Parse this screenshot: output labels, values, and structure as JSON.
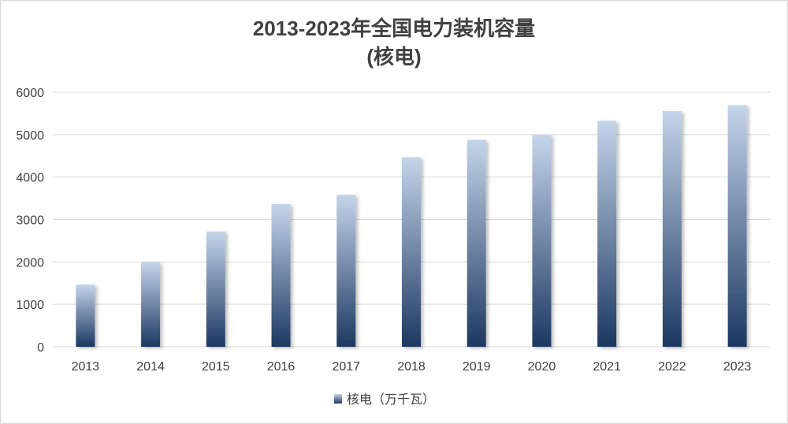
{
  "chart_data": {
    "type": "bar",
    "title": "2013-2023年全国电力装机容量",
    "subtitle": "(核电)",
    "categories": [
      "2013",
      "2014",
      "2015",
      "2016",
      "2017",
      "2018",
      "2019",
      "2020",
      "2021",
      "2022",
      "2023"
    ],
    "series": [
      {
        "name": "核电（万千瓦）",
        "values": [
          1466,
          1988,
          2717,
          3364,
          3582,
          4466,
          4874,
          4989,
          5326,
          5553,
          5691
        ]
      }
    ],
    "ylim": [
      0,
      6000
    ],
    "yticks": [
      "0",
      "1000",
      "2000",
      "3000",
      "4000",
      "5000",
      "6000"
    ],
    "grid": true,
    "legend_position": "bottom",
    "colors": {
      "bar_top": "#c3d5ea",
      "bar_bottom": "#1d3760",
      "grid": "#d9d9d9",
      "text": "#404040"
    }
  }
}
